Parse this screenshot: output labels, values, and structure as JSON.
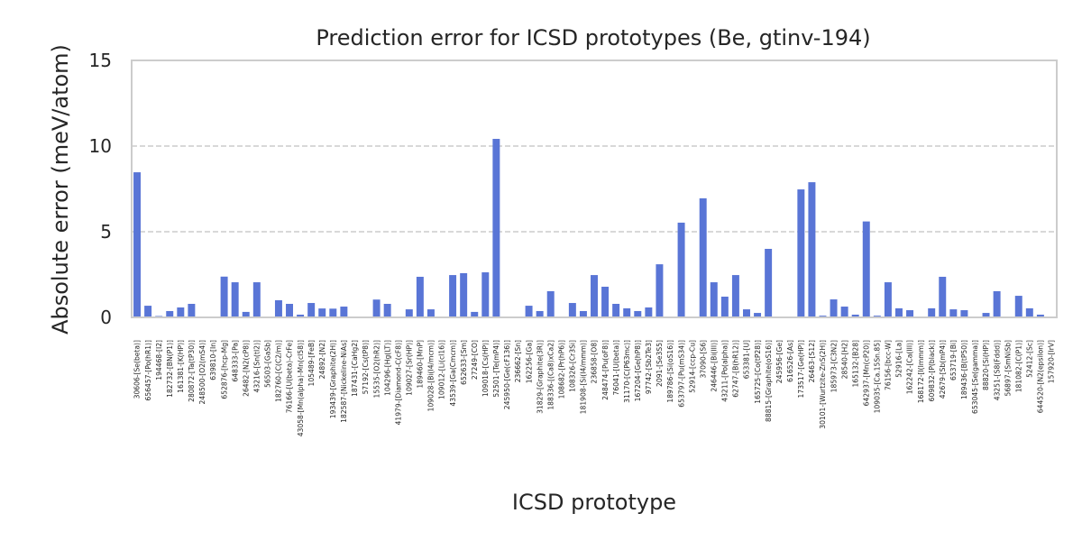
{
  "chart_data": {
    "type": "bar",
    "title": "Prediction error for ICSD prototypes (Be, gtinv-194)",
    "xlabel": "ICSD prototype",
    "ylabel": "Absolute error (meV/atom)",
    "ylim": [
      0,
      15
    ],
    "yticks": [
      "0",
      "5",
      "10",
      "15"
    ],
    "ytick_values": [
      0,
      5,
      10,
      15
    ],
    "grid": "y-dashed",
    "bar_color": "#5975d6",
    "categories": [
      "30606-[Se(beta)]",
      "656457-[Po(hR1)]",
      "194468-[I2]",
      "182732-[BN(P1)]",
      "161381-[K(HP)]",
      "280872-[Ta(tP30)]",
      "248500-[O2(mS4)]",
      "639810-[In]",
      "652876-[hcp-Mg]",
      "648333-[Pa]",
      "26482-[N2(cP8)]",
      "43216-[Sn(tI2)]",
      "56503-[GaSb]",
      "182760-[C(C2/m)]",
      "76166-[U(beta)-CrFe]",
      "43058-[Mn(alpha)-Mn(cI58)]",
      "105489-[FeB]",
      "24892-[N2]",
      "193439-[Graphite(2H)]",
      "182587-[Nickeline-NiAs]",
      "187431-[CaHg2]",
      "57192-[Cs(tP8)]",
      "15535-[O2(hR2)]",
      "104296-[Hg(LT)]",
      "41979-[Diamond-C(cF8)]",
      "109027-[Sr(HP)]",
      "189460-[MnP]",
      "109028-[Bi(I4/mcm)]",
      "109012-[Li(cI16)]",
      "43539-[Ga(Cmcm)]",
      "652633-[Sm]",
      "27249-[CO]",
      "109018-[Cs(HP)]",
      "52501-[Te(mP4)]",
      "245950-[Ge(cF136)]",
      "236662-[Sn]",
      "162256-[Ga]",
      "31829-[Graphite(3R)]",
      "188336-[(Ca8)xCa2]",
      "108682-[Pr(hP6)]",
      "108326-[Cr3Si]",
      "181908-[Si(I4/mmm)]",
      "236858-[O8]",
      "248474-[Pu(oF8)]",
      "76041-[U(beta)]",
      "31170-[C(P63mc)]",
      "167204-[Ge(hP8)]",
      "97742-[Sb2Te3]",
      "2091-[Se3S5]",
      "189786-[Si(oS16)]",
      "653797-[Pu(mS34)]",
      "52914-[ccp-Cu]",
      "37090-[S6]",
      "246446-[Bi(III)]",
      "43211-[Po(alpha)]",
      "62747-[B(hR12)]",
      "653381-[U]",
      "165725-[Co(tP28)]",
      "88815-[Graphite(oS16)]",
      "245956-[Ge]",
      "616526-[As]",
      "173517-[Ge(HP)]",
      "26463-[S12]",
      "30101-[Wurtzite-ZnS(2H)]",
      "185973-[C3N2]",
      "28540-[H2]",
      "165132-[B28]",
      "642937-[Mn(cP20)]",
      "109035-[Ca.15Sn.85]",
      "76156-[bcc-W]",
      "52916-[La]",
      "162242-[Ca(III)]",
      "168172-[I(Immm)]",
      "609832-[P(black)]",
      "42679-[Sb(mP4)]",
      "653719-[Bi]",
      "189436-[B(tP50)]",
      "653045-[Se(gamma)]",
      "88820-[Si(HP)]",
      "43251-[S8(Fddd)]",
      "56897-[SmNiSb]",
      "181082-[C(P1)]",
      "52412-[Sc]",
      "644520-[N2(epsilon)]",
      "157920-[IrV]"
    ],
    "values": [
      8.47,
      0.68,
      0.08,
      0.37,
      0.58,
      0.79,
      0.05,
      0.05,
      2.38,
      2.05,
      0.32,
      2.05,
      0.01,
      1.0,
      0.79,
      0.16,
      0.84,
      0.52,
      0.51,
      0.63,
      0.0,
      0.05,
      1.04,
      0.79,
      0.0,
      0.47,
      2.37,
      0.47,
      0.05,
      2.47,
      2.58,
      0.32,
      2.63,
      10.42,
      0.0,
      0.0,
      0.68,
      0.37,
      1.53,
      0.05,
      0.84,
      0.37,
      2.47,
      1.79,
      0.79,
      0.53,
      0.37,
      0.58,
      3.1,
      0.05,
      5.53,
      0.05,
      6.95,
      2.05,
      1.21,
      2.47,
      0.47,
      0.26,
      4.0,
      0.05,
      0.0,
      7.47,
      7.89,
      0.1,
      1.05,
      0.63,
      0.16,
      5.6,
      0.1,
      2.05,
      0.53,
      0.42,
      0.05,
      0.53,
      2.37,
      0.47,
      0.42,
      0.0,
      0.26,
      1.53,
      0.0,
      1.26,
      0.53,
      0.16,
      0.05
    ]
  }
}
